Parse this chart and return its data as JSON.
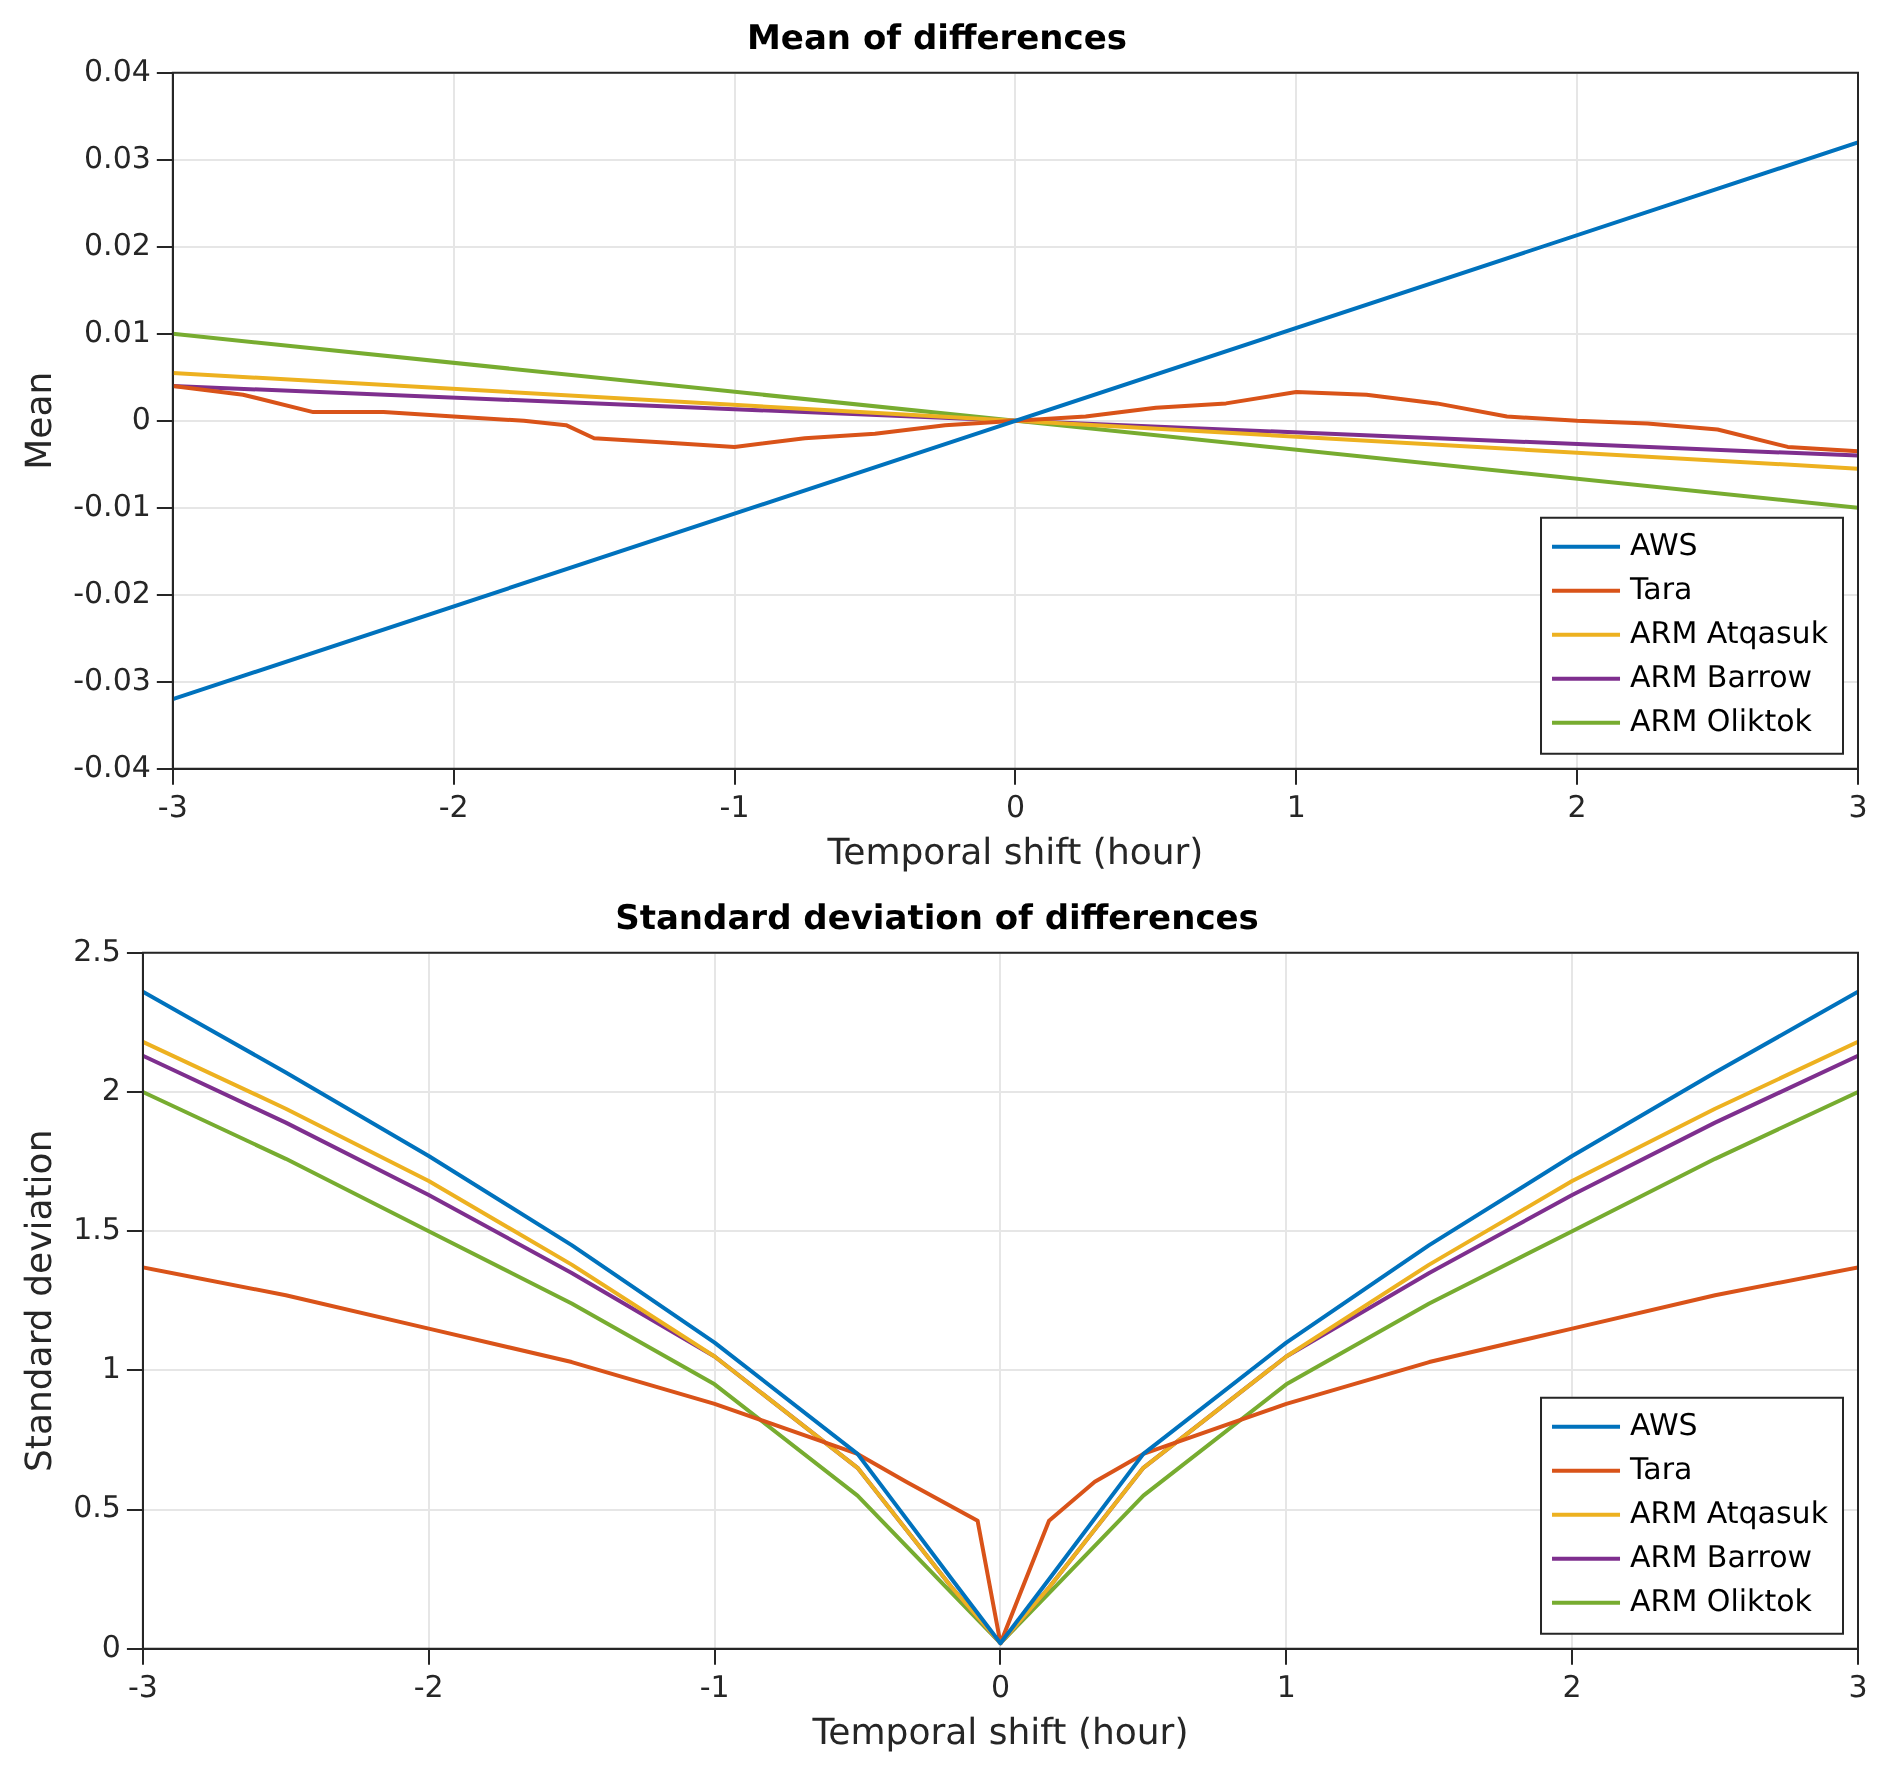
{
  "chart_data": [
    {
      "type": "line",
      "title": "Mean of differences",
      "xlabel": "Temporal shift (hour)",
      "ylabel": "Mean",
      "xlim": [
        -3,
        3
      ],
      "xticks": [
        -3,
        -2,
        -1,
        0,
        1,
        2,
        3
      ],
      "ylim": [
        -0.04,
        0.04
      ],
      "yticks": [
        -0.04,
        -0.03,
        -0.02,
        -0.01,
        0,
        0.01,
        0.02,
        0.03,
        0.04
      ],
      "grid": true,
      "legend": "bottom right",
      "marker": "none",
      "line_style": "solid",
      "series": [
        {
          "name": "AWS",
          "color": "#0072bd",
          "x": [
            -3,
            0,
            3
          ],
          "values": [
            -0.032,
            0,
            0.032
          ]
        },
        {
          "name": "Tara",
          "color": "#d95319",
          "x": [
            -3,
            -2.75,
            -2.5,
            -2.25,
            -2,
            -1.75,
            -1.6,
            -1.5,
            -1.25,
            -1,
            -0.75,
            -0.5,
            -0.25,
            0,
            0.25,
            0.5,
            0.75,
            1,
            1.25,
            1.5,
            1.75,
            2,
            2.25,
            2.5,
            2.75,
            3
          ],
          "values": [
            0.004,
            0.003,
            0.001,
            0.001,
            0.0005,
            0,
            -0.0005,
            -0.002,
            -0.0025,
            -0.003,
            -0.002,
            -0.0015,
            -0.0005,
            0,
            0.0005,
            0.0015,
            0.002,
            0.0033,
            0.003,
            0.002,
            0.0005,
            0,
            -0.0003,
            -0.001,
            -0.003,
            -0.0035
          ]
        },
        {
          "name": "ARM Atqasuk",
          "color": "#edb120",
          "x": [
            -3,
            0,
            3
          ],
          "values": [
            0.0055,
            0,
            -0.0055
          ]
        },
        {
          "name": "ARM Barrow",
          "color": "#7e2f8e",
          "x": [
            -3,
            0,
            3
          ],
          "values": [
            0.004,
            0,
            -0.004
          ]
        },
        {
          "name": "ARM Oliktok",
          "color": "#77ac30",
          "x": [
            -3,
            0,
            3
          ],
          "values": [
            0.01,
            0,
            -0.01
          ]
        }
      ]
    },
    {
      "type": "line",
      "title": "Standard deviation of differences",
      "xlabel": "Temporal shift (hour)",
      "ylabel": "Standard deviation",
      "xlim": [
        -3,
        3
      ],
      "xticks": [
        -3,
        -2,
        -1,
        0,
        1,
        2,
        3
      ],
      "ylim": [
        0,
        2.5
      ],
      "yticks": [
        0,
        0.5,
        1,
        1.5,
        2,
        2.5
      ],
      "grid": true,
      "legend": "bottom right",
      "marker": "none",
      "line_style": "solid",
      "series": [
        {
          "name": "AWS",
          "color": "#0072bd",
          "x": [
            -3,
            -2.5,
            -2,
            -1.5,
            -1,
            -0.5,
            -0.17,
            0,
            0.17,
            0.5,
            1,
            1.5,
            2,
            2.5,
            3
          ],
          "values": [
            2.36,
            2.07,
            1.77,
            1.45,
            1.1,
            0.7,
            0.25,
            0.02,
            0.25,
            0.7,
            1.1,
            1.45,
            1.77,
            2.07,
            2.36
          ]
        },
        {
          "name": "Tara",
          "color": "#d95319",
          "x": [
            -3,
            -2.5,
            -2,
            -1.5,
            -1,
            -0.5,
            -0.33,
            -0.08,
            0,
            0.17,
            0.33,
            0.5,
            1,
            1.5,
            2,
            2.5,
            3
          ],
          "values": [
            1.37,
            1.27,
            1.15,
            1.03,
            0.88,
            0.7,
            0.6,
            0.46,
            0.02,
            0.46,
            0.6,
            0.7,
            0.88,
            1.03,
            1.15,
            1.27,
            1.37
          ]
        },
        {
          "name": "ARM Atqasuk",
          "color": "#edb120",
          "x": [
            -3,
            -2.5,
            -2,
            -1.5,
            -1,
            -0.5,
            -0.17,
            0,
            0.17,
            0.5,
            1,
            1.5,
            2,
            2.5,
            3
          ],
          "values": [
            2.18,
            1.94,
            1.68,
            1.38,
            1.05,
            0.65,
            0.22,
            0.02,
            0.22,
            0.65,
            1.05,
            1.38,
            1.68,
            1.94,
            2.18
          ]
        },
        {
          "name": "ARM Barrow",
          "color": "#7e2f8e",
          "x": [
            -3,
            -2.5,
            -2,
            -1.5,
            -1,
            -0.5,
            -0.17,
            0,
            0.17,
            0.5,
            1,
            1.5,
            2,
            2.5,
            3
          ],
          "values": [
            2.13,
            1.89,
            1.63,
            1.35,
            1.05,
            0.65,
            0.22,
            0.02,
            0.22,
            0.65,
            1.05,
            1.35,
            1.63,
            1.89,
            2.13
          ]
        },
        {
          "name": "ARM Oliktok",
          "color": "#77ac30",
          "x": [
            -3,
            -2.5,
            -2,
            -1.5,
            -1,
            -0.5,
            -0.17,
            0,
            0.17,
            0.5,
            1,
            1.5,
            2,
            2.5,
            3
          ],
          "values": [
            2.0,
            1.76,
            1.5,
            1.24,
            0.95,
            0.55,
            0.2,
            0.02,
            0.2,
            0.55,
            0.95,
            1.24,
            1.5,
            1.76,
            2.0
          ]
        }
      ]
    }
  ]
}
